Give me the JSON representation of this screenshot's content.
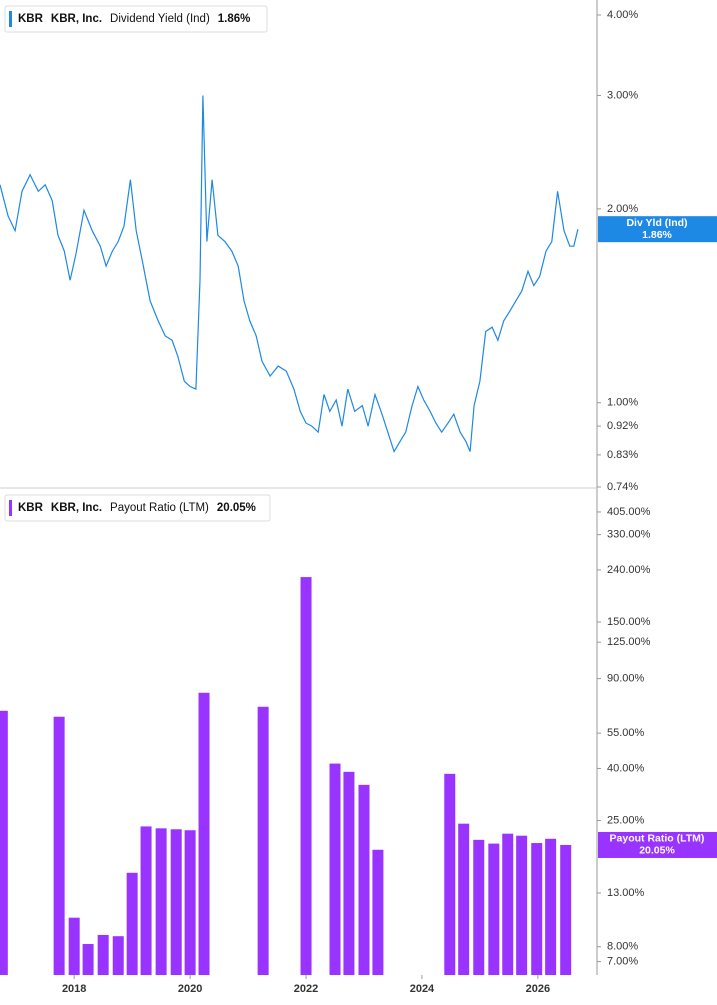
{
  "chart_data": [
    {
      "type": "line",
      "ticker": "KBR",
      "company": "KBR, Inc.",
      "current_label": "1.86%",
      "badge": "Div Yld (Ind)",
      "log": true,
      "xlim": [
        2016.72,
        2027.02
      ],
      "ylim": [
        0.74,
        4.22
      ],
      "yticks": [
        {
          "value": 4,
          "label": "4.00%"
        },
        {
          "value": 3,
          "label": "3.00%"
        },
        {
          "value": 2,
          "label": "2.00%"
        },
        {
          "value": 1,
          "label": "1.00%"
        },
        {
          "value": 0.92,
          "label": "0.92%"
        },
        {
          "value": 0.83,
          "label": "0.83%"
        },
        {
          "value": 0.74,
          "label": "0.74%"
        }
      ],
      "x": [
        2016.72,
        2016.86,
        2016.98,
        2017.1,
        2017.24,
        2017.38,
        2017.5,
        2017.62,
        2017.72,
        2017.83,
        2017.93,
        2018.03,
        2018.17,
        2018.31,
        2018.45,
        2018.55,
        2018.66,
        2018.76,
        2018.86,
        2018.97,
        2019.07,
        2019.17,
        2019.31,
        2019.45,
        2019.57,
        2019.69,
        2019.79,
        2019.9,
        2020.0,
        2020.1,
        2020.17,
        2020.22,
        2020.29,
        2020.38,
        2020.48,
        2020.6,
        2020.72,
        2020.83,
        2020.93,
        2021.03,
        2021.14,
        2021.24,
        2021.38,
        2021.52,
        2021.66,
        2021.79,
        2021.9,
        2022.0,
        2022.1,
        2022.21,
        2022.31,
        2022.41,
        2022.52,
        2022.62,
        2022.72,
        2022.84,
        2022.97,
        2023.07,
        2023.19,
        2023.31,
        2023.41,
        2023.52,
        2023.62,
        2023.72,
        2023.83,
        2023.93,
        2024.03,
        2024.14,
        2024.24,
        2024.34,
        2024.45,
        2024.55,
        2024.66,
        2024.76,
        2024.83,
        2024.9,
        2025.0,
        2025.1,
        2025.21,
        2025.31,
        2025.41,
        2025.52,
        2025.62,
        2025.72,
        2025.83,
        2025.93,
        2026.03,
        2026.14,
        2026.24,
        2026.34,
        2026.45,
        2026.55,
        2026.62,
        2026.69
      ],
      "series": [
        {
          "name": "Dividend Yield (Ind)",
          "color": "#1e88e5",
          "values": [
            2.18,
            1.95,
            1.85,
            2.13,
            2.26,
            2.13,
            2.18,
            2.06,
            1.82,
            1.72,
            1.55,
            1.7,
            1.99,
            1.85,
            1.75,
            1.63,
            1.72,
            1.78,
            1.88,
            2.22,
            1.85,
            1.67,
            1.44,
            1.34,
            1.27,
            1.25,
            1.18,
            1.08,
            1.06,
            1.05,
            1.55,
            3.0,
            1.78,
            2.22,
            1.82,
            1.78,
            1.72,
            1.63,
            1.44,
            1.34,
            1.27,
            1.16,
            1.1,
            1.14,
            1.12,
            1.05,
            0.97,
            0.93,
            0.92,
            0.9,
            1.03,
            0.97,
            1.01,
            0.92,
            1.05,
            0.97,
            0.99,
            0.92,
            1.03,
            0.96,
            0.9,
            0.84,
            0.87,
            0.9,
            0.99,
            1.06,
            1.01,
            0.97,
            0.93,
            0.9,
            0.93,
            0.96,
            0.9,
            0.87,
            0.84,
            0.99,
            1.08,
            1.29,
            1.31,
            1.25,
            1.34,
            1.39,
            1.44,
            1.49,
            1.6,
            1.52,
            1.57,
            1.72,
            1.78,
            2.13,
            1.85,
            1.75,
            1.75,
            1.86
          ]
        }
      ]
    },
    {
      "type": "bar",
      "ticker": "KBR",
      "company": "KBR, Inc.",
      "current_label": "20.05%",
      "log": true,
      "xlim": [
        2016.72,
        2027.02
      ],
      "ylim": [
        6.2,
        485
      ],
      "xticks": [
        2018,
        2020,
        2022,
        2024,
        2026
      ],
      "yticks": [
        {
          "value": 405,
          "label": "405.00%"
        },
        {
          "value": 330,
          "label": "330.00%"
        },
        {
          "value": 240,
          "label": "240.00%"
        },
        {
          "value": 150,
          "label": "150.00%"
        },
        {
          "value": 125,
          "label": "125.00%"
        },
        {
          "value": 90,
          "label": "90.00%"
        },
        {
          "value": 55,
          "label": "55.00%"
        },
        {
          "value": 40,
          "label": "40.00%"
        },
        {
          "value": 25,
          "label": "25.00%"
        },
        {
          "value": 13,
          "label": "13.00%"
        },
        {
          "value": 8,
          "label": "8.00%"
        },
        {
          "value": 7,
          "label": "7.00%"
        }
      ],
      "x": [
        2016.76,
        2017.74,
        2018.0,
        2018.24,
        2018.5,
        2018.76,
        2019.0,
        2019.24,
        2019.5,
        2019.76,
        2020.0,
        2020.24,
        2021.26,
        2022.0,
        2022.5,
        2022.74,
        2023.0,
        2023.24,
        2024.48,
        2024.72,
        2024.98,
        2025.24,
        2025.48,
        2025.72,
        2025.98,
        2026.22,
        2026.48
      ],
      "series": [
        {
          "name": "Payout Ratio (LTM)",
          "color": "#9933ff",
          "values": [
            67.3,
            63.8,
            10.4,
            8.2,
            8.9,
            8.8,
            15.6,
            23.7,
            23.3,
            23.1,
            22.9,
            79.2,
            69.8,
            225,
            41.8,
            38.8,
            34.5,
            19.2,
            38.1,
            24.3,
            21.0,
            20.3,
            22.2,
            21.8,
            20.4,
            21.2,
            20.05
          ]
        }
      ]
    }
  ]
}
